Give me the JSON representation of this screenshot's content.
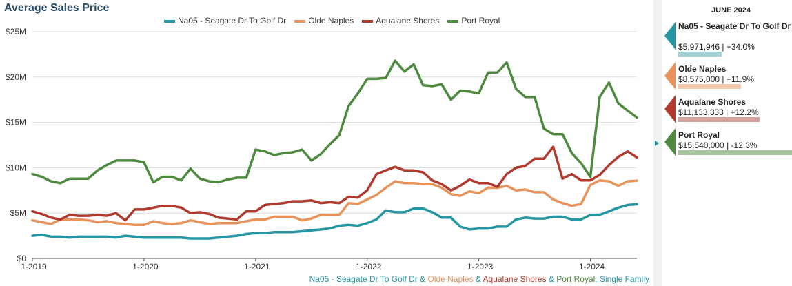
{
  "chart_data": {
    "type": "line",
    "title": "Average Sales Price",
    "xlabel": "",
    "ylabel": "",
    "x_start": "2019-01",
    "x_end": "2024-06",
    "x_ticks": [
      "1-2019",
      "1-2020",
      "1-2021",
      "1-2022",
      "1-2023",
      "1-2024"
    ],
    "y_ticks": [
      "$0",
      "$5M",
      "$10M",
      "$15M",
      "$20M",
      "$25M"
    ],
    "ylim": [
      0,
      25
    ],
    "y_unit": "$M",
    "grid": true,
    "legend_position": "top",
    "series": [
      {
        "name": "Na05 - Seagate Dr To Golf Dr",
        "color": "#2596a4",
        "values": [
          2.5,
          2.6,
          2.4,
          2.4,
          2.3,
          2.4,
          2.4,
          2.4,
          2.4,
          2.3,
          2.5,
          2.4,
          2.3,
          2.3,
          2.3,
          2.3,
          2.3,
          2.2,
          2.2,
          2.2,
          2.3,
          2.4,
          2.5,
          2.7,
          2.8,
          2.8,
          2.9,
          2.9,
          2.9,
          3.0,
          3.1,
          3.2,
          3.3,
          3.6,
          3.7,
          3.6,
          3.9,
          4.3,
          5.3,
          5.1,
          5.1,
          5.5,
          5.5,
          5.1,
          4.5,
          4.5,
          3.5,
          3.2,
          3.3,
          3.3,
          3.5,
          3.5,
          4.3,
          4.5,
          4.4,
          4.4,
          4.6,
          4.6,
          4.3,
          4.3,
          4.8,
          4.8,
          5.2,
          5.6,
          5.9,
          5.97
        ]
      },
      {
        "name": "Olde Naples",
        "color": "#e8935c",
        "values": [
          4.2,
          4.0,
          3.8,
          4.3,
          4.3,
          4.3,
          4.2,
          4.0,
          4.1,
          3.9,
          3.8,
          3.7,
          3.7,
          4.1,
          3.9,
          3.8,
          3.9,
          4.2,
          4.0,
          3.8,
          3.9,
          3.9,
          3.9,
          4.1,
          4.3,
          4.3,
          4.6,
          4.6,
          4.6,
          4.2,
          4.4,
          4.8,
          4.8,
          4.8,
          6.1,
          6.0,
          6.5,
          7.0,
          7.8,
          8.5,
          8.3,
          8.3,
          8.2,
          8.2,
          7.8,
          7.1,
          6.9,
          7.4,
          7.2,
          7.8,
          7.8,
          8.0,
          7.5,
          7.6,
          7.3,
          7.3,
          6.5,
          6.1,
          5.8,
          6.0,
          8.1,
          8.6,
          8.5,
          8.0,
          8.5,
          8.575
        ]
      },
      {
        "name": "Aqualane Shores",
        "color": "#b03a2e",
        "values": [
          5.2,
          4.9,
          4.5,
          4.3,
          4.8,
          4.7,
          4.7,
          4.8,
          4.7,
          5.0,
          4.2,
          5.4,
          5.4,
          5.6,
          5.8,
          5.8,
          5.6,
          5.0,
          5.1,
          4.9,
          4.5,
          4.4,
          4.3,
          5.2,
          5.2,
          5.9,
          6.0,
          6.1,
          6.3,
          6.3,
          6.4,
          6.1,
          6.2,
          6.1,
          6.8,
          6.7,
          7.5,
          9.3,
          9.7,
          10.1,
          9.7,
          9.7,
          9.5,
          8.6,
          8.2,
          7.5,
          8.0,
          8.7,
          8.3,
          8.3,
          7.9,
          9.3,
          10.0,
          10.2,
          11.0,
          11.0,
          12.3,
          8.8,
          9.3,
          8.6,
          8.6,
          9.2,
          10.3,
          11.2,
          11.8,
          11.133
        ]
      },
      {
        "name": "Port Royal",
        "color": "#4e8a3e",
        "values": [
          9.3,
          9.0,
          8.5,
          8.3,
          8.8,
          8.8,
          8.8,
          9.7,
          10.3,
          10.8,
          10.8,
          10.8,
          10.6,
          8.4,
          9.0,
          9.0,
          8.6,
          9.9,
          8.8,
          8.5,
          8.4,
          8.7,
          8.9,
          8.9,
          12.0,
          11.8,
          11.4,
          11.6,
          11.7,
          12.0,
          10.8,
          11.5,
          12.6,
          13.6,
          16.8,
          18.2,
          19.8,
          19.8,
          19.9,
          21.8,
          20.6,
          21.4,
          19.1,
          19.0,
          19.2,
          17.5,
          18.5,
          18.4,
          18.2,
          20.5,
          20.5,
          21.6,
          18.7,
          17.8,
          17.8,
          14.3,
          13.7,
          13.7,
          11.6,
          10.5,
          9.0,
          17.8,
          19.4,
          17.1,
          16.3,
          15.54
        ]
      }
    ]
  },
  "footnote": {
    "parts": [
      {
        "text": "Na05 - Seagate Dr To Golf Dr",
        "color": "#2596a4"
      },
      {
        "text": " & ",
        "color": "#2596a4"
      },
      {
        "text": "Olde Naples",
        "color": "#e8935c"
      },
      {
        "text": " & ",
        "color": "#2596a4"
      },
      {
        "text": "Aqualane Shores",
        "color": "#b03a2e"
      },
      {
        "text": " & ",
        "color": "#2596a4"
      },
      {
        "text": "Port Royal",
        "color": "#4e8a3e"
      },
      {
        "text": ": Single Family",
        "color": "#2596a4"
      }
    ]
  },
  "side_panel": {
    "period": "JUNE 2024",
    "cards": [
      {
        "name": "Na05 - Seagate Dr To Golf Dr",
        "value": "$5,971,946 | +34.0%",
        "color": "#2596a4",
        "bar_color": "#a3d2d6",
        "bar_fraction": 0.384
      },
      {
        "name": "Olde Naples",
        "value": "$8,575,000 | +11.9%",
        "color": "#e8935c",
        "bar_color": "#f3c7ab",
        "bar_fraction": 0.552
      },
      {
        "name": "Aqualane Shores",
        "value": "$11,133,333 | +12.2%",
        "color": "#b03a2e",
        "bar_color": "#d4a09b",
        "bar_fraction": 0.716
      },
      {
        "name": "Port Royal",
        "value": "$15,540,000 | -12.3%",
        "color": "#4e8a3e",
        "bar_color": "#a9c59f",
        "bar_fraction": 1.0
      }
    ]
  }
}
